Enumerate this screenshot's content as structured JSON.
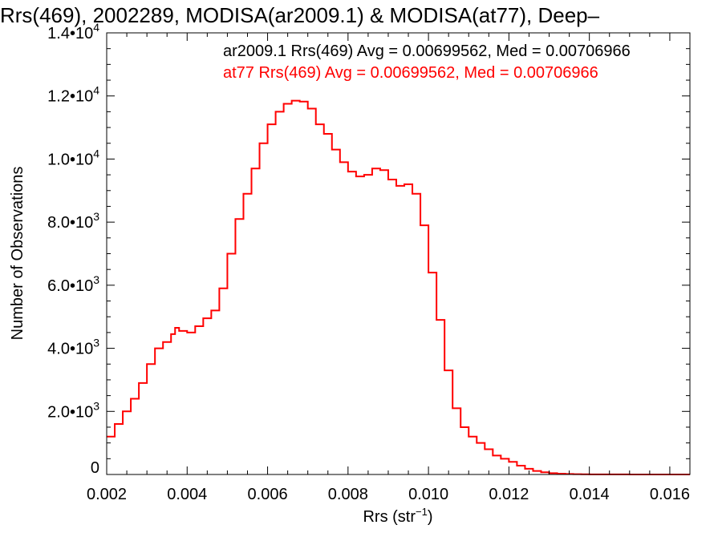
{
  "chart_data": {
    "type": "line",
    "title": "Rrs(469), 2002289, MODISA(ar2009.1) & MODISA(at77), Deep–",
    "xlabel": "Rrs (str",
    "xlabel_sup": "−1",
    "xlabel_close": ")",
    "ylabel": "Number of Observations",
    "xlim": [
      0.002,
      0.0165
    ],
    "ylim": [
      0,
      14000
    ],
    "x_ticks": [
      {
        "value": 0.002,
        "label": "0.002"
      },
      {
        "value": 0.004,
        "label": "0.004"
      },
      {
        "value": 0.006,
        "label": "0.006"
      },
      {
        "value": 0.008,
        "label": "0.008"
      },
      {
        "value": 0.01,
        "label": "0.010"
      },
      {
        "value": 0.012,
        "label": "0.012"
      },
      {
        "value": 0.014,
        "label": "0.014"
      },
      {
        "value": 0.016,
        "label": "0.016"
      }
    ],
    "y_ticks": [
      {
        "value": 0,
        "mant": "0",
        "exp": ""
      },
      {
        "value": 2000,
        "mant": "2.0•10",
        "exp": "3"
      },
      {
        "value": 4000,
        "mant": "4.0•10",
        "exp": "3"
      },
      {
        "value": 6000,
        "mant": "6.0•10",
        "exp": "3"
      },
      {
        "value": 8000,
        "mant": "8.0•10",
        "exp": "3"
      },
      {
        "value": 10000,
        "mant": "1.0•10",
        "exp": "4"
      },
      {
        "value": 12000,
        "mant": "1.2•10",
        "exp": "4"
      },
      {
        "value": 14000,
        "mant": "1.4•10",
        "exp": "4"
      }
    ],
    "annotations": [
      {
        "text": "ar2009.1 Rrs(469) Avg = 0.00699562, Med = 0.00706966",
        "color": "#000000"
      },
      {
        "text": "at77 Rrs(469) Avg = 0.00699562, Med = 0.00706966",
        "color": "#ff0000"
      }
    ],
    "grid": false,
    "series": [
      {
        "name": "at77",
        "color": "#ff0000",
        "style": "step",
        "x": [
          0.002,
          0.0022,
          0.0024,
          0.0026,
          0.0028,
          0.003,
          0.0032,
          0.0034,
          0.0036,
          0.0037,
          0.0038,
          0.004,
          0.0042,
          0.0044,
          0.0046,
          0.0048,
          0.005,
          0.0052,
          0.0054,
          0.0056,
          0.0058,
          0.006,
          0.0062,
          0.0064,
          0.0066,
          0.0068,
          0.007,
          0.0072,
          0.0074,
          0.0076,
          0.0078,
          0.008,
          0.0082,
          0.0084,
          0.0086,
          0.0088,
          0.009,
          0.0092,
          0.0094,
          0.0096,
          0.0098,
          0.01,
          0.0102,
          0.0104,
          0.0106,
          0.0108,
          0.011,
          0.0112,
          0.0114,
          0.0116,
          0.0118,
          0.012,
          0.0122,
          0.0124,
          0.0126,
          0.0128,
          0.013,
          0.0132,
          0.0134,
          0.0136,
          0.0138,
          0.014,
          0.0145,
          0.015,
          0.0155,
          0.016,
          0.0165
        ],
        "y": [
          1200,
          1600,
          2000,
          2400,
          2900,
          3500,
          4000,
          4200,
          4450,
          4650,
          4550,
          4500,
          4700,
          4950,
          5200,
          5900,
          7000,
          8100,
          8900,
          9700,
          10500,
          11100,
          11500,
          11750,
          11850,
          11820,
          11600,
          11100,
          10800,
          10300,
          9900,
          9600,
          9450,
          9500,
          9700,
          9650,
          9350,
          9150,
          9200,
          8900,
          7900,
          6400,
          4900,
          3300,
          2100,
          1500,
          1200,
          1000,
          800,
          600,
          500,
          400,
          280,
          180,
          110,
          70,
          40,
          25,
          15,
          10,
          5,
          3,
          2,
          1,
          0,
          0,
          0
        ]
      }
    ]
  }
}
